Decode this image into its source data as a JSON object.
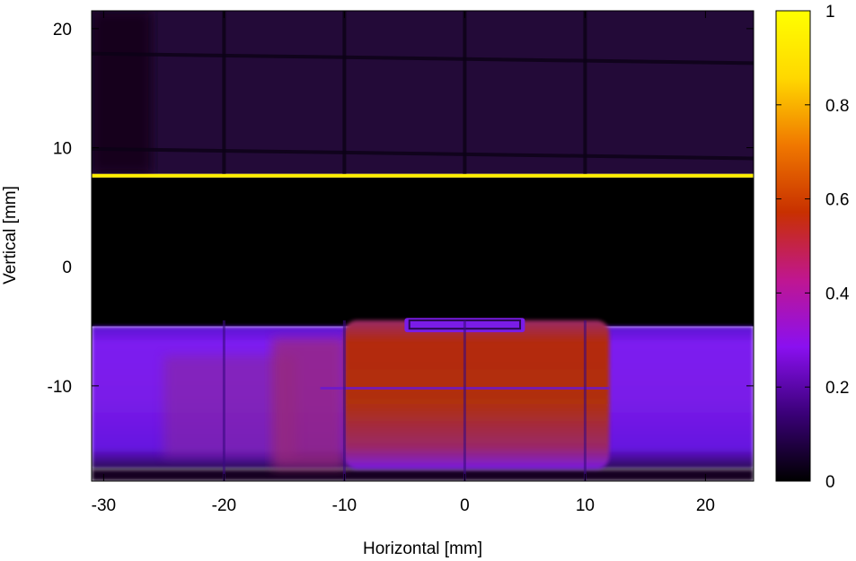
{
  "chart_data": {
    "type": "heatmap",
    "title": "",
    "xlabel": "Horizontal [mm]",
    "ylabel": "Vertical [mm]",
    "xlim": [
      -31,
      24
    ],
    "ylim": [
      -18,
      21.5
    ],
    "x_ticks": [
      -30,
      -20,
      -10,
      0,
      10,
      20
    ],
    "y_ticks": [
      -10,
      0,
      10,
      20
    ],
    "colorbar": {
      "range": [
        0,
        1
      ],
      "ticks": [
        0,
        0.2,
        0.4,
        0.6,
        0.8,
        1
      ],
      "tick_labels": [
        "0",
        "0.2",
        "0.4",
        "0.6",
        "0.8",
        "1"
      ],
      "colormap": [
        "#000000",
        "#3a0078",
        "#8a10f0",
        "#c01690",
        "#c83000",
        "#f07800",
        "#ffd800",
        "#ffff00"
      ]
    },
    "regions": [
      {
        "label": "upper background",
        "x_range": [
          -31,
          24
        ],
        "y_range": [
          7.8,
          21.5
        ],
        "intensity": 0.06
      },
      {
        "label": "bright edge",
        "x_range": [
          -31,
          24
        ],
        "y_range": [
          7.5,
          7.8
        ],
        "intensity": 1.0
      },
      {
        "label": "shadow",
        "x_range": [
          -31,
          24
        ],
        "y_range": [
          -5,
          7.5
        ],
        "intensity": 0.0
      },
      {
        "label": "lower beam",
        "x_range": [
          -31,
          24
        ],
        "y_range": [
          -17,
          -5
        ],
        "intensity": 0.25
      },
      {
        "label": "central beam",
        "x_range": [
          -10,
          12
        ],
        "y_range": [
          -17,
          -4.5
        ],
        "intensity": 0.55
      }
    ],
    "grid_lines_x": [
      -20,
      -10,
      0,
      10
    ],
    "grid_lines_y": [
      9.5,
      17.5
    ]
  },
  "colors": {
    "background": "#ffffff",
    "axis": "#000000",
    "upper_field": "#230a38",
    "bright_edge": "#ffee00",
    "shadow": "#000000",
    "beam_edge": "#7d1cf0",
    "beam_core": "#b42a0a"
  }
}
